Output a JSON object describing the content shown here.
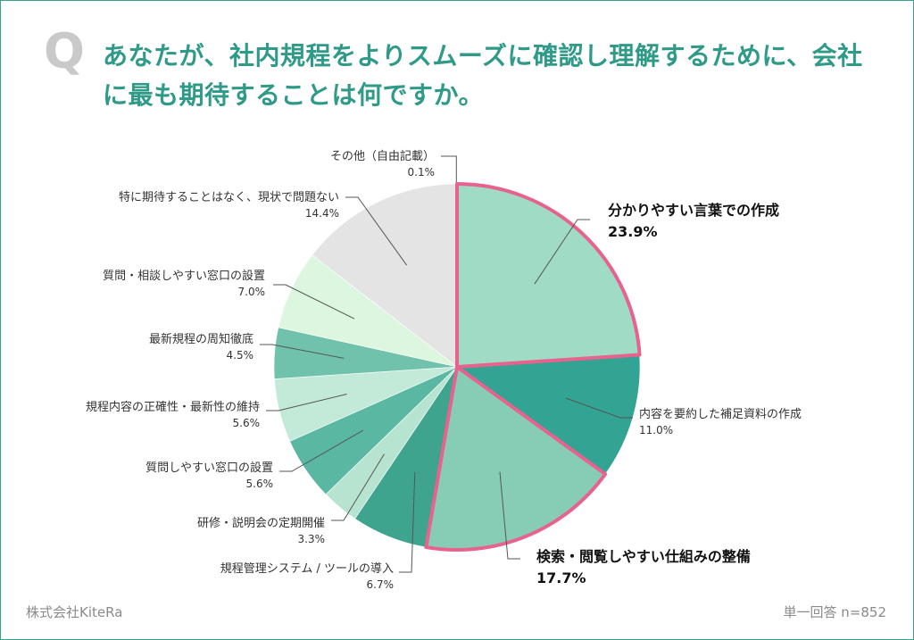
{
  "question_mark": "Q",
  "title": "あなたが、社内規程をよりスムーズに確認し理解するために、会社に最も期待することは何ですか。",
  "footer": {
    "brand": "株式会社KiteRa",
    "note": "単一回答 n=852"
  },
  "colors": {
    "accent": "#2f9a88",
    "highlight_border": "#e8628e"
  },
  "chart_data": {
    "type": "pie",
    "title": "",
    "start_angle_deg": 0,
    "direction": "clockwise",
    "slices": [
      {
        "label": "分かりやすい言葉での作成",
        "value": 23.9,
        "display": "23.9%",
        "color": "#a0dcc5",
        "highlight": true
      },
      {
        "label": "内容を要約した補足資料の作成",
        "value": 11.0,
        "display": "11.0%",
        "color": "#33a493",
        "highlight": false
      },
      {
        "label": "検索・閲覧しやすい仕組みの整備",
        "value": 17.7,
        "display": "17.7%",
        "color": "#87cdb5",
        "highlight": true
      },
      {
        "label": "規程管理システム / ツールの導入",
        "value": 6.7,
        "display": "6.7%",
        "color": "#3ea48e",
        "highlight": false
      },
      {
        "label": "研修・説明会の定期開催",
        "value": 3.3,
        "display": "3.3%",
        "color": "#b7e4d1",
        "highlight": false
      },
      {
        "label": "質問しやすい窓口の設置",
        "value": 5.6,
        "display": "5.6%",
        "color": "#5ab8a2",
        "highlight": false
      },
      {
        "label": "規程内容の正確性・最新性の維持",
        "value": 5.6,
        "display": "5.6%",
        "color": "#c3ead8",
        "highlight": false
      },
      {
        "label": "最新規程の周知徹底",
        "value": 4.5,
        "display": "4.5%",
        "color": "#70c2ac",
        "highlight": false
      },
      {
        "label": "質問・相談しやすい窓口の設置",
        "value": 7.0,
        "display": "7.0%",
        "color": "#ddf6df",
        "highlight": false
      },
      {
        "label": "特に期待することはなく、現状で問題ない",
        "value": 14.4,
        "display": "14.4%",
        "color": "#e4e4e4",
        "highlight": false
      },
      {
        "label": "その他（自由記載）",
        "value": 0.1,
        "display": "0.1%",
        "color": "#d0d0d0",
        "highlight": false
      }
    ]
  }
}
